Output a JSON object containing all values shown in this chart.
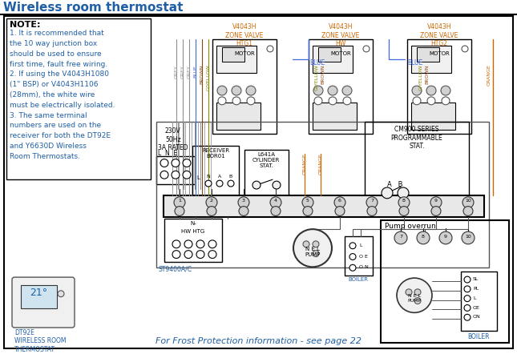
{
  "title": "Wireless room thermostat",
  "title_color": "#1f5fa6",
  "bg_color": "#ffffff",
  "note_title": "NOTE:",
  "note_lines": [
    "1. It is recommended that",
    "the 10 way junction box",
    "should be used to ensure",
    "first time, fault free wiring.",
    "2. If using the V4043H1080",
    "(1\" BSP) or V4043H1106",
    "(28mm), the white wire",
    "must be electrically isolated.",
    "3. The same terminal",
    "numbers are used on the",
    "receiver for both the DT92E",
    "and Y6630D Wireless",
    "Room Thermostats."
  ],
  "valve_labels": [
    "V4043H\nZONE VALVE\nHTG1",
    "V4043H\nZONE VALVE\nHW",
    "V4043H\nZONE VALVE\nHTG2"
  ],
  "wire_colors": {
    "grey": "#909090",
    "blue": "#4169e1",
    "brown": "#8b4513",
    "g_yellow": "#888800",
    "orange": "#cc6600",
    "black": "#000000",
    "dark": "#333333"
  },
  "footer_text": "For Frost Protection information - see page 22",
  "footer_color": "#1f5fa6",
  "pump_overrun_label": "Pump overrun",
  "receiver_label": "RECEIVER\nBOR01",
  "cylinder_label": "L641A\nCYLINDER\nSTAT.",
  "cm900_label": "CM900 SERIES\nPROGRAMMABLE\nSTAT.",
  "power_label": "230V\n50Hz\n3A RATED",
  "hw_htg_label": "HW HTG",
  "st9400_label": "ST9400A/C",
  "boiler_label": "BOILER",
  "pump_label": "N E L\nPUMP",
  "dt92e_label": "DT92E\nWIRELESS ROOM\nTHERMOSTAT"
}
